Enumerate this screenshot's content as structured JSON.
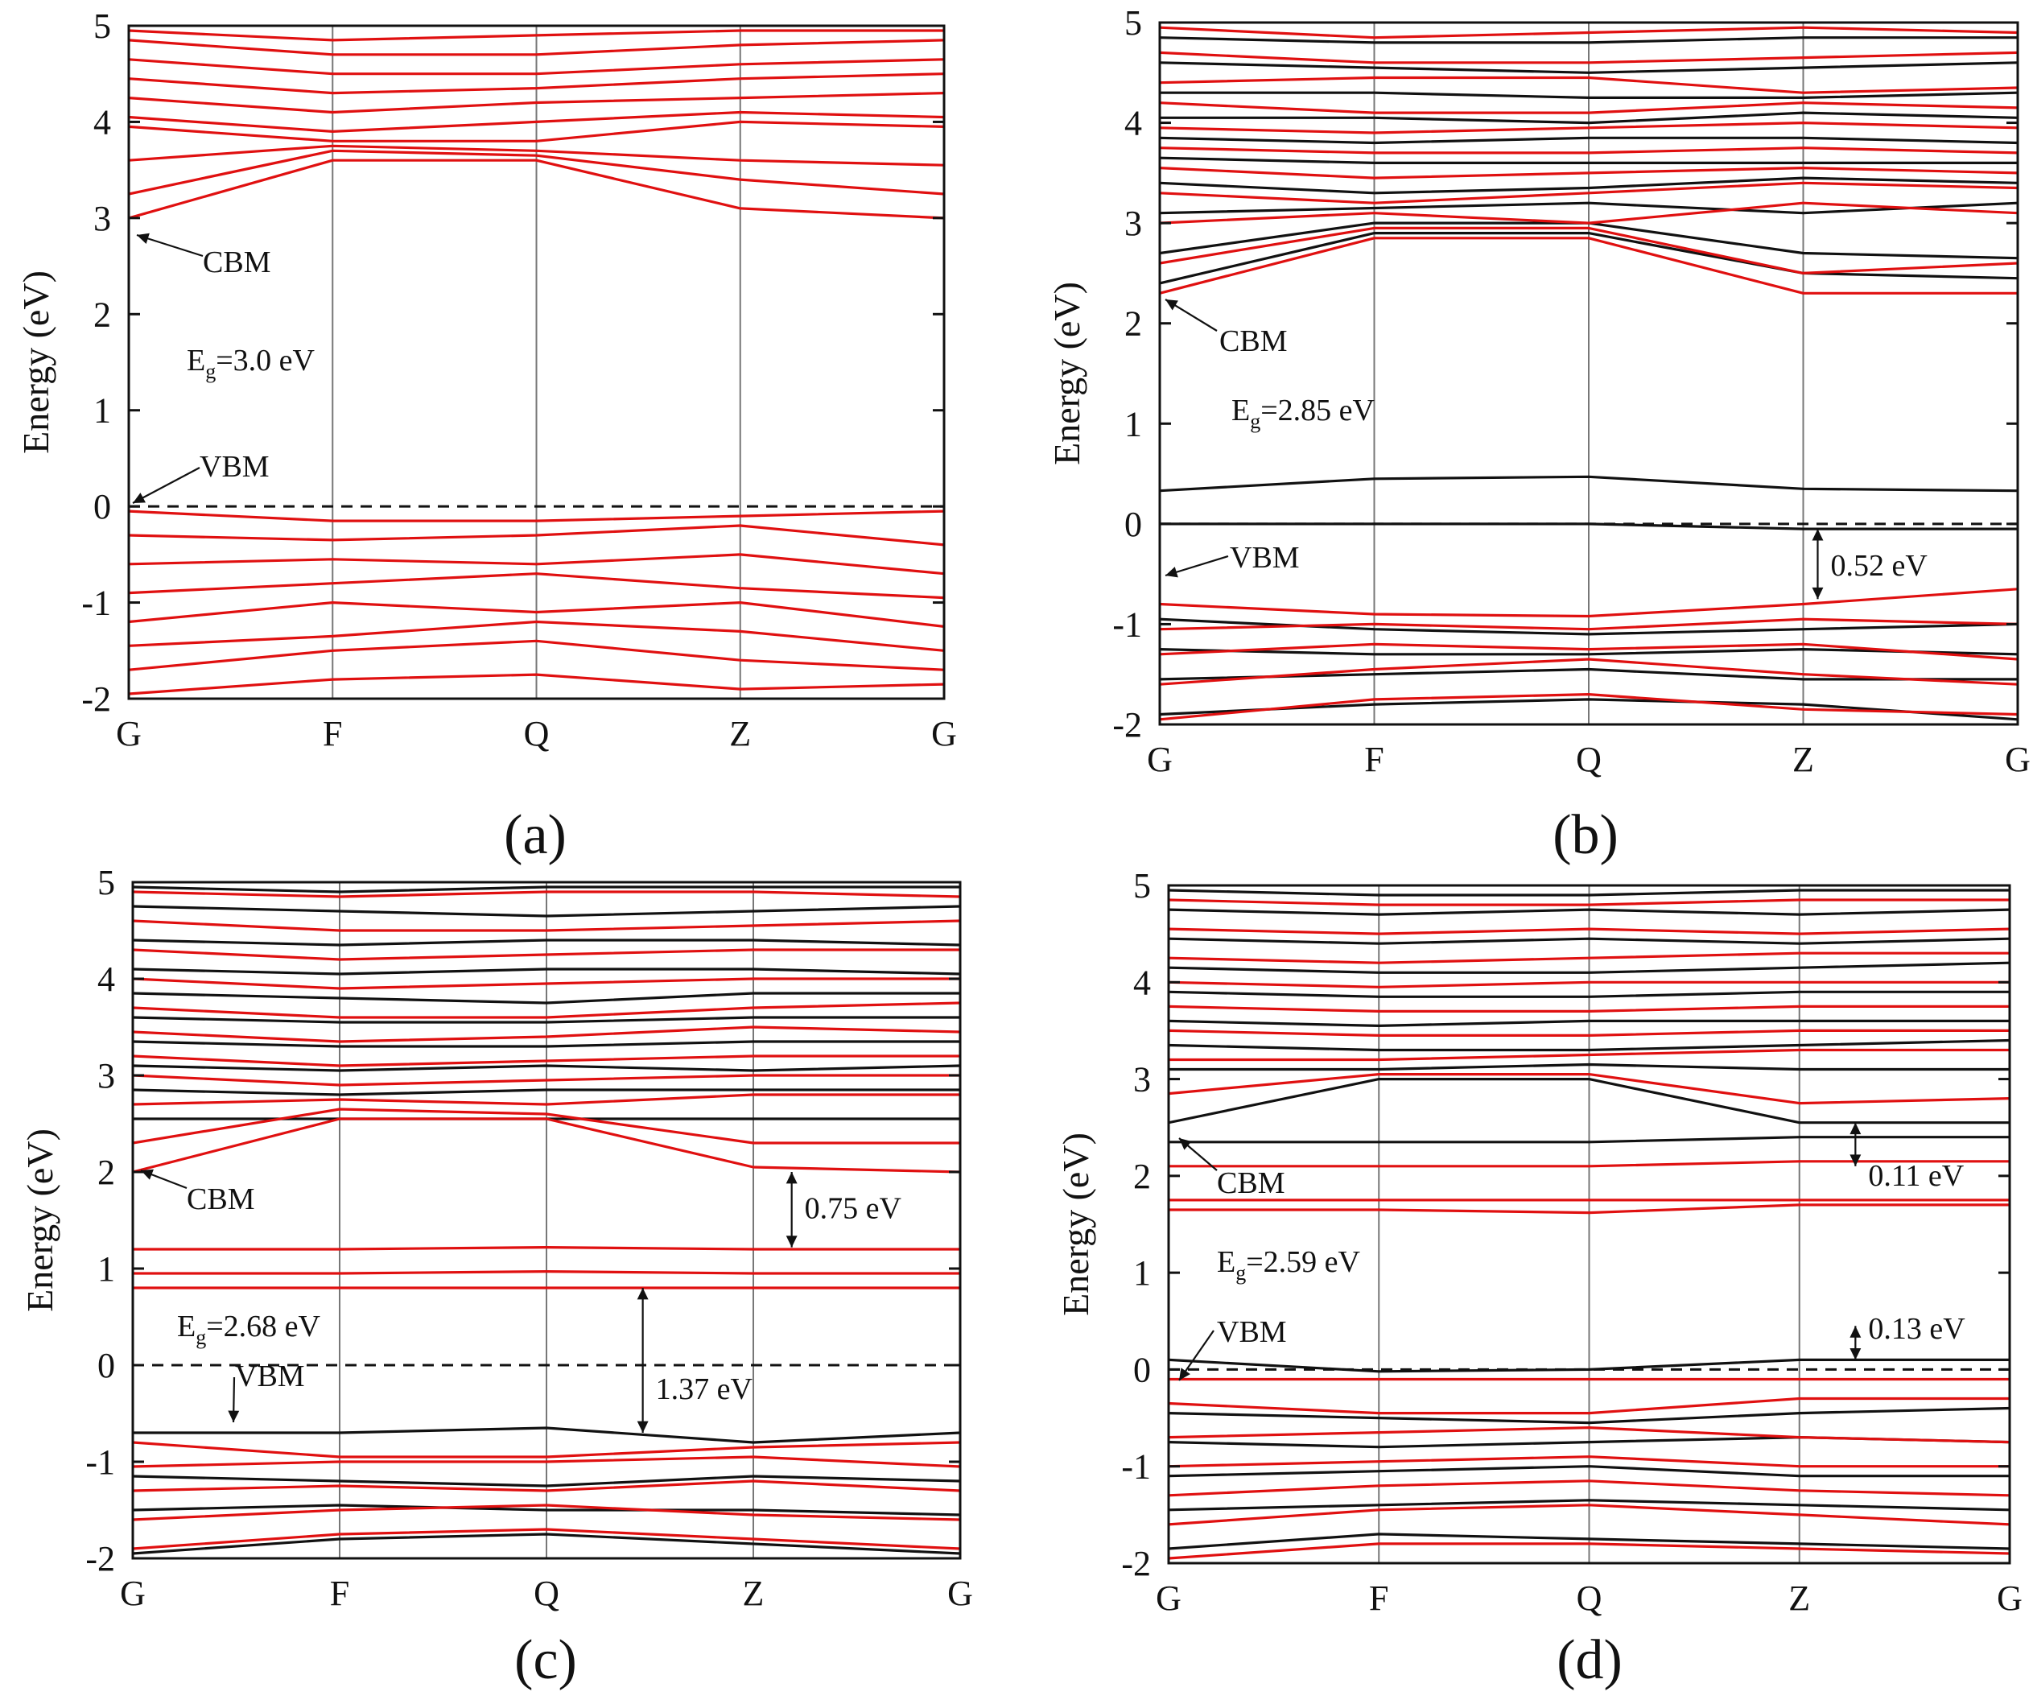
{
  "colors": {
    "spin_up": "#e01010",
    "spin_down": "#111111",
    "fermi": "#111111",
    "vline": "#777777"
  },
  "chart_data": [
    {
      "panel": "(a)",
      "type": "line",
      "xlabel": "",
      "ylabel": "Energy (eV)",
      "ylim": [
        -2,
        5
      ],
      "yticks": [
        "-2",
        "-1",
        "0",
        "1",
        "2",
        "3",
        "4",
        "5"
      ],
      "kpoints": [
        "G",
        "F",
        "Q",
        "Z",
        "G"
      ],
      "fermi_level": 0,
      "gap_label_main": "E",
      "gap_label_sub": "g",
      "gap_label_value": "=3.0 eV",
      "cbm_label": "CBM",
      "vbm_label": "VBM",
      "series": [
        {
          "name": "spin-up",
          "color": "red",
          "bands": [
            [
              -1.95,
              -1.8,
              -1.75,
              -1.9,
              -1.85
            ],
            [
              -1.7,
              -1.5,
              -1.4,
              -1.6,
              -1.7
            ],
            [
              -1.45,
              -1.35,
              -1.2,
              -1.3,
              -1.5
            ],
            [
              -1.2,
              -1.0,
              -1.1,
              -1.0,
              -1.25
            ],
            [
              -0.9,
              -0.8,
              -0.7,
              -0.85,
              -0.95
            ],
            [
              -0.6,
              -0.55,
              -0.6,
              -0.5,
              -0.7
            ],
            [
              -0.3,
              -0.35,
              -0.3,
              -0.2,
              -0.4
            ],
            [
              -0.05,
              -0.15,
              -0.15,
              -0.1,
              -0.05
            ],
            [
              3.0,
              3.6,
              3.6,
              3.1,
              3.0
            ],
            [
              3.25,
              3.7,
              3.65,
              3.4,
              3.25
            ],
            [
              3.6,
              3.75,
              3.7,
              3.6,
              3.55
            ],
            [
              3.95,
              3.8,
              3.8,
              4.0,
              3.95
            ],
            [
              4.05,
              3.9,
              4.0,
              4.1,
              4.05
            ],
            [
              4.25,
              4.1,
              4.2,
              4.25,
              4.3
            ],
            [
              4.45,
              4.3,
              4.35,
              4.45,
              4.5
            ],
            [
              4.65,
              4.5,
              4.5,
              4.6,
              4.65
            ],
            [
              4.85,
              4.7,
              4.7,
              4.8,
              4.85
            ],
            [
              4.95,
              4.85,
              4.9,
              4.95,
              4.95
            ]
          ]
        }
      ]
    },
    {
      "panel": "(b)",
      "type": "line",
      "xlabel": "",
      "ylabel": "Energy (eV)",
      "ylim": [
        -2,
        5
      ],
      "yticks": [
        "-2",
        "-1",
        "0",
        "1",
        "2",
        "3",
        "4",
        "5"
      ],
      "kpoints": [
        "G",
        "F",
        "Q",
        "Z",
        "G"
      ],
      "fermi_level": 0,
      "gap_label_main": "E",
      "gap_label_sub": "g",
      "gap_label_value": "=2.85 eV",
      "cbm_label": "CBM",
      "vbm_label": "VBM",
      "extra_annotations": [
        "0.52 eV"
      ],
      "series": [
        {
          "name": "spin-up",
          "color": "red",
          "bands": [
            [
              -1.95,
              -1.75,
              -1.7,
              -1.85,
              -1.9
            ],
            [
              -1.6,
              -1.45,
              -1.35,
              -1.5,
              -1.6
            ],
            [
              -1.3,
              -1.2,
              -1.25,
              -1.2,
              -1.35
            ],
            [
              -1.05,
              -1.0,
              -1.05,
              -0.95,
              -1.0
            ],
            [
              -0.8,
              -0.9,
              -0.92,
              -0.8,
              -0.65
            ],
            [
              2.3,
              2.85,
              2.85,
              2.3,
              2.3
            ],
            [
              2.6,
              2.95,
              2.95,
              2.5,
              2.6
            ],
            [
              3.0,
              3.1,
              3.0,
              3.2,
              3.1
            ],
            [
              3.3,
              3.2,
              3.3,
              3.4,
              3.35
            ],
            [
              3.55,
              3.45,
              3.5,
              3.55,
              3.5
            ],
            [
              3.75,
              3.7,
              3.7,
              3.75,
              3.7
            ],
            [
              3.95,
              3.9,
              3.95,
              4.0,
              3.95
            ],
            [
              4.2,
              4.1,
              4.1,
              4.2,
              4.15
            ],
            [
              4.4,
              4.45,
              4.45,
              4.3,
              4.35
            ],
            [
              4.7,
              4.6,
              4.6,
              4.65,
              4.7
            ],
            [
              4.95,
              4.85,
              4.9,
              4.95,
              4.9
            ]
          ]
        },
        {
          "name": "spin-down",
          "color": "black",
          "bands": [
            [
              -1.9,
              -1.8,
              -1.75,
              -1.8,
              -1.95
            ],
            [
              -1.55,
              -1.5,
              -1.45,
              -1.55,
              -1.55
            ],
            [
              -1.25,
              -1.3,
              -1.3,
              -1.25,
              -1.3
            ],
            [
              -0.95,
              -1.05,
              -1.1,
              -1.05,
              -1.0
            ],
            [
              0.0,
              0.0,
              0.0,
              -0.05,
              -0.05
            ],
            [
              0.33,
              0.45,
              0.47,
              0.35,
              0.33
            ],
            [
              2.4,
              2.9,
              2.9,
              2.5,
              2.45
            ],
            [
              2.7,
              3.0,
              3.0,
              2.7,
              2.65
            ],
            [
              3.1,
              3.15,
              3.2,
              3.1,
              3.2
            ],
            [
              3.4,
              3.3,
              3.35,
              3.45,
              3.4
            ],
            [
              3.65,
              3.6,
              3.6,
              3.6,
              3.6
            ],
            [
              3.85,
              3.8,
              3.85,
              3.85,
              3.8
            ],
            [
              4.05,
              4.05,
              4.0,
              4.1,
              4.05
            ],
            [
              4.3,
              4.3,
              4.25,
              4.25,
              4.3
            ],
            [
              4.6,
              4.55,
              4.5,
              4.55,
              4.6
            ],
            [
              4.85,
              4.8,
              4.8,
              4.85,
              4.85
            ]
          ]
        }
      ]
    },
    {
      "panel": "(c)",
      "type": "line",
      "xlabel": "",
      "ylabel": "Energy (eV)",
      "ylim": [
        -2,
        5
      ],
      "yticks": [
        "-2",
        "-1",
        "0",
        "1",
        "2",
        "3",
        "4",
        "5"
      ],
      "kpoints": [
        "G",
        "F",
        "Q",
        "Z",
        "G"
      ],
      "fermi_level": 0,
      "gap_label_main": "E",
      "gap_label_sub": "g",
      "gap_label_value": "=2.68 eV",
      "cbm_label": "CBM",
      "vbm_label": "VBM",
      "extra_annotations": [
        "0.75 eV",
        "1.37 eV"
      ],
      "series": [
        {
          "name": "spin-up",
          "color": "red",
          "bands": [
            [
              -1.9,
              -1.75,
              -1.7,
              -1.8,
              -1.9
            ],
            [
              -1.6,
              -1.5,
              -1.45,
              -1.55,
              -1.6
            ],
            [
              -1.3,
              -1.25,
              -1.3,
              -1.2,
              -1.3
            ],
            [
              -1.05,
              -1.0,
              -1.0,
              -0.95,
              -1.05
            ],
            [
              -0.8,
              -0.95,
              -0.95,
              -0.85,
              -0.8
            ],
            [
              0.8,
              0.8,
              0.8,
              0.8,
              0.8
            ],
            [
              0.95,
              0.95,
              0.97,
              0.95,
              0.95
            ],
            [
              1.2,
              1.2,
              1.22,
              1.2,
              1.2
            ],
            [
              2.0,
              2.55,
              2.55,
              2.05,
              2.0
            ],
            [
              2.3,
              2.65,
              2.6,
              2.3,
              2.3
            ],
            [
              2.7,
              2.75,
              2.7,
              2.8,
              2.8
            ],
            [
              3.0,
              2.9,
              2.95,
              3.0,
              3.0
            ],
            [
              3.2,
              3.1,
              3.15,
              3.2,
              3.2
            ],
            [
              3.45,
              3.35,
              3.4,
              3.5,
              3.45
            ],
            [
              3.7,
              3.6,
              3.6,
              3.7,
              3.75
            ],
            [
              4.0,
              3.9,
              3.95,
              4.0,
              4.0
            ],
            [
              4.3,
              4.2,
              4.25,
              4.3,
              4.3
            ],
            [
              4.6,
              4.5,
              4.5,
              4.55,
              4.6
            ],
            [
              4.9,
              4.85,
              4.9,
              4.9,
              4.85
            ]
          ]
        },
        {
          "name": "spin-down",
          "color": "black",
          "bands": [
            [
              -1.95,
              -1.8,
              -1.75,
              -1.85,
              -1.95
            ],
            [
              -1.5,
              -1.45,
              -1.5,
              -1.5,
              -1.55
            ],
            [
              -1.15,
              -1.2,
              -1.25,
              -1.15,
              -1.2
            ],
            [
              -0.7,
              -0.7,
              -0.65,
              -0.8,
              -0.7
            ],
            [
              2.55,
              2.55,
              2.55,
              2.55,
              2.55
            ],
            [
              2.85,
              2.8,
              2.85,
              2.85,
              2.85
            ],
            [
              3.1,
              3.05,
              3.1,
              3.05,
              3.1
            ],
            [
              3.35,
              3.3,
              3.3,
              3.35,
              3.35
            ],
            [
              3.6,
              3.55,
              3.55,
              3.6,
              3.6
            ],
            [
              3.85,
              3.8,
              3.75,
              3.85,
              3.85
            ],
            [
              4.1,
              4.05,
              4.1,
              4.1,
              4.05
            ],
            [
              4.4,
              4.35,
              4.4,
              4.4,
              4.35
            ],
            [
              4.75,
              4.7,
              4.65,
              4.7,
              4.75
            ],
            [
              4.95,
              4.9,
              4.95,
              4.95,
              4.95
            ]
          ]
        }
      ]
    },
    {
      "panel": "(d)",
      "type": "line",
      "xlabel": "",
      "ylabel": "Energy (eV)",
      "ylim": [
        -2,
        5
      ],
      "yticks": [
        "-2",
        "-1",
        "0",
        "1",
        "2",
        "3",
        "4",
        "5"
      ],
      "kpoints": [
        "G",
        "F",
        "Q",
        "Z",
        "G"
      ],
      "fermi_level": 0,
      "gap_label_main": "E",
      "gap_label_sub": "g",
      "gap_label_value": "=2.59 eV",
      "cbm_label": "CBM",
      "vbm_label": "VBM",
      "extra_annotations": [
        "0.11 eV",
        "0.13 eV"
      ],
      "series": [
        {
          "name": "spin-up",
          "color": "red",
          "bands": [
            [
              -1.95,
              -1.8,
              -1.8,
              -1.85,
              -1.9
            ],
            [
              -1.6,
              -1.45,
              -1.4,
              -1.5,
              -1.6
            ],
            [
              -1.3,
              -1.2,
              -1.15,
              -1.25,
              -1.3
            ],
            [
              -1.0,
              -0.95,
              -0.9,
              -1.0,
              -1.0
            ],
            [
              -0.7,
              -0.65,
              -0.6,
              -0.7,
              -0.75
            ],
            [
              -0.35,
              -0.45,
              -0.45,
              -0.3,
              -0.3
            ],
            [
              -0.1,
              -0.1,
              -0.1,
              -0.1,
              -0.1
            ],
            [
              1.65,
              1.65,
              1.62,
              1.7,
              1.7
            ],
            [
              1.75,
              1.75,
              1.75,
              1.75,
              1.75
            ],
            [
              2.1,
              2.1,
              2.1,
              2.15,
              2.15
            ],
            [
              2.85,
              3.05,
              3.05,
              2.75,
              2.8
            ],
            [
              3.2,
              3.2,
              3.25,
              3.3,
              3.3
            ],
            [
              3.5,
              3.45,
              3.45,
              3.5,
              3.5
            ],
            [
              3.75,
              3.7,
              3.7,
              3.75,
              3.75
            ],
            [
              4.0,
              3.95,
              4.0,
              4.0,
              4.0
            ],
            [
              4.25,
              4.2,
              4.25,
              4.3,
              4.3
            ],
            [
              4.55,
              4.5,
              4.55,
              4.5,
              4.55
            ],
            [
              4.85,
              4.8,
              4.8,
              4.85,
              4.85
            ]
          ]
        },
        {
          "name": "spin-down",
          "color": "black",
          "bands": [
            [
              -1.85,
              -1.7,
              -1.75,
              -1.8,
              -1.85
            ],
            [
              -1.45,
              -1.4,
              -1.35,
              -1.4,
              -1.45
            ],
            [
              -1.1,
              -1.05,
              -1.0,
              -1.1,
              -1.1
            ],
            [
              -0.75,
              -0.8,
              -0.75,
              -0.7,
              -0.75
            ],
            [
              -0.45,
              -0.5,
              -0.55,
              -0.45,
              -0.4
            ],
            [
              0.1,
              -0.02,
              0.0,
              0.1,
              0.1
            ],
            [
              2.35,
              2.35,
              2.35,
              2.4,
              2.4
            ],
            [
              2.55,
              3.0,
              3.0,
              2.55,
              2.55
            ],
            [
              3.1,
              3.1,
              3.15,
              3.1,
              3.1
            ],
            [
              3.35,
              3.3,
              3.3,
              3.35,
              3.4
            ],
            [
              3.6,
              3.55,
              3.6,
              3.6,
              3.6
            ],
            [
              3.9,
              3.85,
              3.85,
              3.9,
              3.9
            ],
            [
              4.15,
              4.1,
              4.1,
              4.15,
              4.2
            ],
            [
              4.45,
              4.4,
              4.45,
              4.4,
              4.45
            ],
            [
              4.75,
              4.7,
              4.75,
              4.7,
              4.75
            ],
            [
              4.95,
              4.9,
              4.9,
              4.95,
              4.95
            ]
          ]
        }
      ]
    }
  ]
}
